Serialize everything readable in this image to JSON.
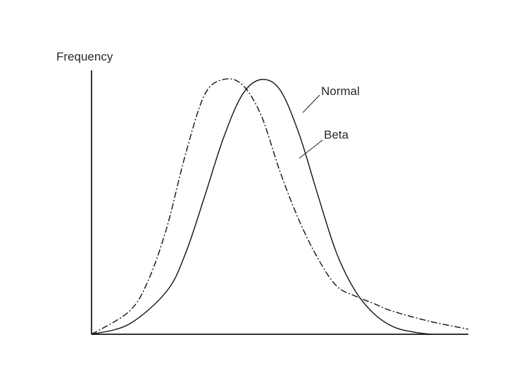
{
  "chart_data": {
    "type": "line",
    "title": "",
    "xlabel": "",
    "ylabel": "Frequency",
    "xlim": [
      0,
      100
    ],
    "ylim": [
      0,
      100
    ],
    "grid": false,
    "legend": "direct labels on curves",
    "series": [
      {
        "name": "Normal",
        "line_style": "solid",
        "color": "#111111",
        "x": [
          0,
          10,
          20,
          25,
          30,
          35,
          40,
          45,
          50,
          55,
          60,
          65,
          70,
          75,
          80,
          85,
          90
        ],
        "y": [
          0,
          4,
          17,
          32,
          54,
          77,
          94,
          100,
          96,
          79,
          55,
          32,
          17,
          8,
          3,
          1,
          0
        ]
      },
      {
        "name": "Beta",
        "line_style": "dash-dot",
        "color": "#111111",
        "x": [
          0,
          10,
          15,
          20,
          25,
          30,
          35,
          40,
          45,
          50,
          55,
          60,
          65,
          70,
          75,
          80,
          90,
          100
        ],
        "y": [
          0,
          9,
          21,
          42,
          71,
          94,
          100,
          98,
          86,
          64,
          45,
          30,
          19,
          15,
          12,
          9,
          5,
          2
        ]
      }
    ]
  }
}
